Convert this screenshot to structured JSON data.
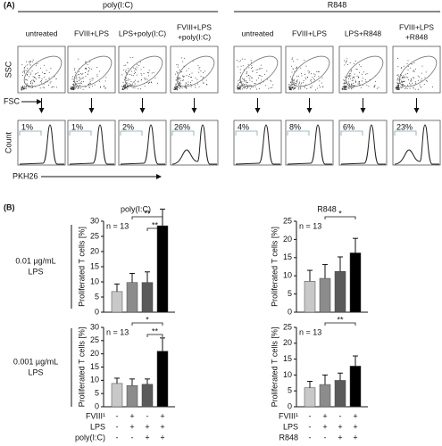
{
  "panel_a": {
    "label": "(A)",
    "groups": [
      {
        "title": "poly(I:C)",
        "columns": [
          [
            "untreated"
          ],
          [
            "FVIII+LPS"
          ],
          [
            "LPS+poly(I:C)"
          ],
          [
            "FVIII+LPS",
            "+poly(I:C)"
          ]
        ],
        "percentages": [
          "1%",
          "1%",
          "2%",
          "26%"
        ]
      },
      {
        "title": "R848",
        "columns": [
          [
            "untreated"
          ],
          [
            "FVIII+LPS"
          ],
          [
            "LPS+R848"
          ],
          [
            "FVIII+LPS",
            "+R848"
          ]
        ],
        "percentages": [
          "4%",
          "8%",
          "6%",
          "23%"
        ]
      }
    ],
    "scatter_y_label": "SSC",
    "scatter_x_label": "FSC",
    "hist_y_label": "Count",
    "hist_x_label": "PKH26"
  },
  "panel_b": {
    "label": "(B)",
    "column_titles": [
      "poly(I:C)",
      "R848"
    ],
    "row_labels": [
      [
        "0.01 µg/mL",
        "LPS"
      ],
      [
        "0.001 µg/mL",
        "LPS"
      ]
    ],
    "treatments": [
      {
        "rows": [
          {
            "label": "FVIII¹",
            "signs": [
              "-",
              "+",
              "-",
              "+"
            ]
          },
          {
            "label": "LPS",
            "signs": [
              "-",
              "+",
              "+",
              "+"
            ]
          },
          {
            "label": "poly(I:C)",
            "signs": [
              "-",
              "-",
              "+",
              "+"
            ]
          }
        ]
      },
      {
        "rows": [
          {
            "label": "FVIII¹",
            "signs": [
              "-",
              "+",
              "-",
              "+"
            ]
          },
          {
            "label": "LPS",
            "signs": [
              "-",
              "+",
              "+",
              "+"
            ]
          },
          {
            "label": "R848",
            "signs": [
              "-",
              "-",
              "+",
              "+"
            ]
          }
        ]
      }
    ]
  },
  "chart_data": [
    {
      "type": "bar",
      "y_label": "Proliferated T cells [%]",
      "annotation": "n = 13",
      "values": [
        6.8,
        9.8,
        9.8,
        28.5
      ],
      "errors": [
        2.5,
        3,
        3.5,
        5.5
      ],
      "colors": [
        "#c8c8c8",
        "#8c8c8c",
        "#5a5a5a",
        "#000000"
      ],
      "ylim": [
        0,
        30
      ],
      "yticks": [
        0,
        5,
        10,
        15,
        20,
        25,
        30
      ],
      "significance": [
        {
          "bars": [
            1,
            3
          ],
          "label": "**"
        },
        {
          "bars": [
            2,
            3
          ],
          "label": "**"
        }
      ]
    },
    {
      "type": "bar",
      "y_label": "Proliferated T cells [%]",
      "annotation": "n = 13",
      "values": [
        8.5,
        9.3,
        11.2,
        16.3
      ],
      "errors": [
        3,
        3.8,
        4,
        4
      ],
      "colors": [
        "#c8c8c8",
        "#8c8c8c",
        "#5a5a5a",
        "#000000"
      ],
      "ylim": [
        0,
        25
      ],
      "yticks": [
        0,
        5,
        10,
        15,
        20,
        25
      ],
      "significance": [
        {
          "bars": [
            1,
            3
          ],
          "label": "*"
        }
      ]
    },
    {
      "type": "bar",
      "y_label": "Proliferated T cells [%]",
      "annotation": "n = 13",
      "values": [
        8.8,
        8,
        8.5,
        21
      ],
      "errors": [
        2,
        2.5,
        2,
        5
      ],
      "colors": [
        "#c8c8c8",
        "#8c8c8c",
        "#5a5a5a",
        "#000000"
      ],
      "ylim": [
        0,
        30
      ],
      "yticks": [
        0,
        5,
        10,
        15,
        20,
        25,
        30
      ],
      "significance": [
        {
          "bars": [
            1,
            3
          ],
          "label": "*"
        },
        {
          "bars": [
            2,
            3
          ],
          "label": "**"
        }
      ]
    },
    {
      "type": "bar",
      "y_label": "Proliferated T cells [%]",
      "annotation": "n = 13",
      "values": [
        6,
        7,
        8.3,
        12.8
      ],
      "errors": [
        2,
        3,
        2.3,
        3.2
      ],
      "colors": [
        "#c8c8c8",
        "#8c8c8c",
        "#5a5a5a",
        "#000000"
      ],
      "ylim": [
        0,
        25
      ],
      "yticks": [
        0,
        5,
        10,
        15,
        20,
        25
      ],
      "significance": [
        {
          "bars": [
            1,
            3
          ],
          "label": "**"
        }
      ]
    }
  ]
}
